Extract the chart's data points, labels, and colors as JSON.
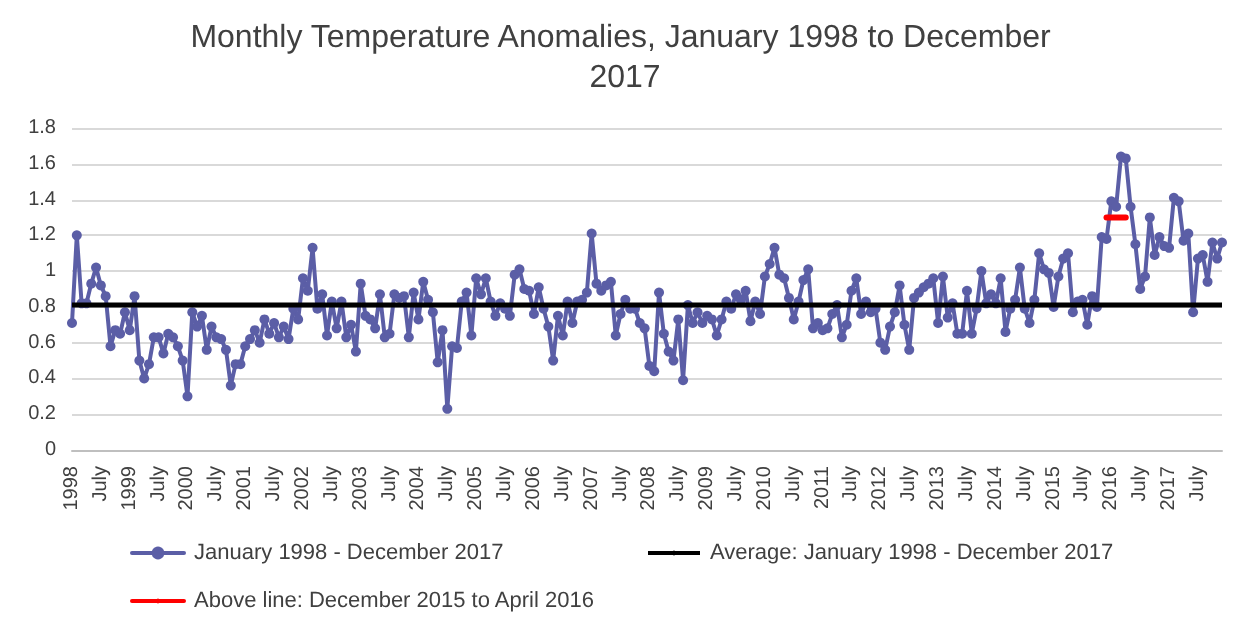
{
  "chart_data": {
    "type": "line",
    "title": "Monthly Temperature Anomalies, January 1998 to December 2017",
    "categories": [
      "1998",
      null,
      null,
      null,
      null,
      null,
      "July",
      null,
      null,
      null,
      null,
      null,
      "1999",
      null,
      null,
      null,
      null,
      null,
      "July",
      null,
      null,
      null,
      null,
      null,
      "2000",
      null,
      null,
      null,
      null,
      null,
      "July",
      null,
      null,
      null,
      null,
      null,
      "2001",
      null,
      null,
      null,
      null,
      null,
      "July",
      null,
      null,
      null,
      null,
      null,
      "2002",
      null,
      null,
      null,
      null,
      null,
      "July",
      null,
      null,
      null,
      null,
      null,
      "2003",
      null,
      null,
      null,
      null,
      null,
      "July",
      null,
      null,
      null,
      null,
      null,
      "2004",
      null,
      null,
      null,
      null,
      null,
      "July",
      null,
      null,
      null,
      null,
      null,
      "2005",
      null,
      null,
      null,
      null,
      null,
      "July",
      null,
      null,
      null,
      null,
      null,
      "2006",
      null,
      null,
      null,
      null,
      null,
      "July",
      null,
      null,
      null,
      null,
      null,
      "2007",
      null,
      null,
      null,
      null,
      null,
      "July",
      null,
      null,
      null,
      null,
      null,
      "2008",
      null,
      null,
      null,
      null,
      null,
      "July",
      null,
      null,
      null,
      null,
      null,
      "2009",
      null,
      null,
      null,
      null,
      null,
      "July",
      null,
      null,
      null,
      null,
      null,
      "2010",
      null,
      null,
      null,
      null,
      null,
      "July",
      null,
      null,
      null,
      null,
      null,
      "2011",
      null,
      null,
      null,
      null,
      null,
      "July",
      null,
      null,
      null,
      null,
      null,
      "2012",
      null,
      null,
      null,
      null,
      null,
      "July",
      null,
      null,
      null,
      null,
      null,
      "2013",
      null,
      null,
      null,
      null,
      null,
      "July",
      null,
      null,
      null,
      null,
      null,
      "2014",
      null,
      null,
      null,
      null,
      null,
      "July",
      null,
      null,
      null,
      null,
      null,
      "2015",
      null,
      null,
      null,
      null,
      null,
      "July",
      null,
      null,
      null,
      null,
      null,
      "2016",
      null,
      null,
      null,
      null,
      null,
      "July",
      null,
      null,
      null,
      null,
      null,
      "2017",
      null,
      null,
      null,
      null,
      null,
      "July",
      null,
      null,
      null,
      null,
      null
    ],
    "series": [
      {
        "name": "January 1998 - December 2017",
        "color": "#5b5ea6",
        "marker": "circle",
        "values": [
          0.71,
          1.2,
          0.82,
          0.82,
          0.93,
          1.02,
          0.92,
          0.86,
          0.58,
          0.67,
          0.65,
          0.77,
          0.67,
          0.86,
          0.5,
          0.4,
          0.48,
          0.63,
          0.63,
          0.54,
          0.65,
          0.63,
          0.58,
          0.5,
          0.3,
          0.77,
          0.69,
          0.75,
          0.56,
          0.69,
          0.63,
          0.62,
          0.56,
          0.36,
          0.48,
          0.48,
          0.58,
          0.62,
          0.67,
          0.6,
          0.73,
          0.65,
          0.71,
          0.63,
          0.69,
          0.62,
          0.79,
          0.73,
          0.96,
          0.89,
          1.13,
          0.79,
          0.87,
          0.64,
          0.83,
          0.68,
          0.83,
          0.63,
          0.7,
          0.55,
          0.93,
          0.75,
          0.73,
          0.68,
          0.87,
          0.63,
          0.65,
          0.87,
          0.85,
          0.86,
          0.63,
          0.88,
          0.73,
          0.94,
          0.84,
          0.77,
          0.49,
          0.67,
          0.23,
          0.58,
          0.57,
          0.83,
          0.88,
          0.64,
          0.96,
          0.87,
          0.96,
          0.83,
          0.75,
          0.82,
          0.79,
          0.75,
          0.98,
          1.01,
          0.9,
          0.89,
          0.76,
          0.91,
          0.79,
          0.69,
          0.5,
          0.75,
          0.64,
          0.83,
          0.71,
          0.83,
          0.84,
          0.88,
          1.21,
          0.93,
          0.89,
          0.92,
          0.94,
          0.64,
          0.76,
          0.84,
          0.79,
          0.79,
          0.71,
          0.68,
          0.47,
          0.44,
          0.88,
          0.65,
          0.55,
          0.5,
          0.73,
          0.39,
          0.81,
          0.71,
          0.77,
          0.71,
          0.75,
          0.73,
          0.64,
          0.73,
          0.83,
          0.79,
          0.87,
          0.84,
          0.89,
          0.72,
          0.83,
          0.76,
          0.97,
          1.04,
          1.13,
          0.98,
          0.96,
          0.85,
          0.73,
          0.83,
          0.95,
          1.01,
          0.68,
          0.71,
          0.67,
          0.68,
          0.76,
          0.81,
          0.63,
          0.7,
          0.89,
          0.96,
          0.76,
          0.83,
          0.77,
          0.79,
          0.6,
          0.56,
          0.69,
          0.77,
          0.92,
          0.7,
          0.56,
          0.85,
          0.88,
          0.91,
          0.93,
          0.96,
          0.71,
          0.97,
          0.74,
          0.82,
          0.65,
          0.65,
          0.89,
          0.65,
          0.79,
          1.0,
          0.82,
          0.87,
          0.82,
          0.96,
          0.66,
          0.79,
          0.84,
          1.02,
          0.79,
          0.71,
          0.84,
          1.1,
          1.01,
          0.99,
          0.8,
          0.97,
          1.07,
          1.1,
          0.77,
          0.83,
          0.84,
          0.7,
          0.86,
          0.8,
          1.19,
          1.18,
          1.39,
          1.36,
          1.64,
          1.63,
          1.36,
          1.15,
          0.9,
          0.97,
          1.3,
          1.09,
          1.19,
          1.14,
          1.13,
          1.41,
          1.39,
          1.17,
          1.21,
          0.77,
          1.07,
          1.09,
          0.94,
          1.16,
          1.07,
          1.16
        ]
      },
      {
        "name": "Above line: December 2015 to April 2016",
        "color": "#ff0000",
        "marker": "none",
        "values": [
          null,
          null,
          null,
          null,
          null,
          null,
          null,
          null,
          null,
          null,
          null,
          null,
          null,
          null,
          null,
          null,
          null,
          null,
          null,
          null,
          null,
          null,
          null,
          null,
          null,
          null,
          null,
          null,
          null,
          null,
          null,
          null,
          null,
          null,
          null,
          null,
          null,
          null,
          null,
          null,
          null,
          null,
          null,
          null,
          null,
          null,
          null,
          null,
          null,
          null,
          null,
          null,
          null,
          null,
          null,
          null,
          null,
          null,
          null,
          null,
          null,
          null,
          null,
          null,
          null,
          null,
          null,
          null,
          null,
          null,
          null,
          null,
          null,
          null,
          null,
          null,
          null,
          null,
          null,
          null,
          null,
          null,
          null,
          null,
          null,
          null,
          null,
          null,
          null,
          null,
          null,
          null,
          null,
          null,
          null,
          null,
          null,
          null,
          null,
          null,
          null,
          null,
          null,
          null,
          null,
          null,
          null,
          null,
          null,
          null,
          null,
          null,
          null,
          null,
          null,
          null,
          null,
          null,
          null,
          null,
          null,
          null,
          null,
          null,
          null,
          null,
          null,
          null,
          null,
          null,
          null,
          null,
          null,
          null,
          null,
          null,
          null,
          null,
          null,
          null,
          null,
          null,
          null,
          null,
          null,
          null,
          null,
          null,
          null,
          null,
          null,
          null,
          null,
          null,
          null,
          null,
          null,
          null,
          null,
          null,
          null,
          null,
          null,
          null,
          null,
          null,
          null,
          null,
          null,
          null,
          null,
          null,
          null,
          null,
          null,
          null,
          null,
          null,
          null,
          null,
          null,
          null,
          null,
          null,
          null,
          null,
          null,
          null,
          null,
          null,
          null,
          null,
          null,
          null,
          null,
          null,
          null,
          null,
          null,
          null,
          null,
          null,
          null,
          null,
          null,
          null,
          null,
          null,
          null,
          null,
          null,
          null,
          null,
          null,
          null,
          1.3,
          1.3,
          1.3,
          1.3,
          1.3,
          null,
          null,
          null,
          null,
          null,
          null,
          null,
          null,
          null,
          null,
          null,
          null,
          null,
          null,
          null,
          null,
          null,
          null,
          null,
          null
        ]
      }
    ],
    "ref_lines": [
      {
        "axis": "y",
        "value": 0.81,
        "label": "Average: January 1998 - December 2017",
        "color": "#000000"
      }
    ],
    "ylim": [
      0,
      1.8
    ],
    "yticks": [
      0,
      0.2,
      0.4,
      0.6,
      0.8,
      1,
      1.2,
      1.4,
      1.6,
      1.8
    ],
    "grid": "y",
    "legend": "bottom"
  }
}
